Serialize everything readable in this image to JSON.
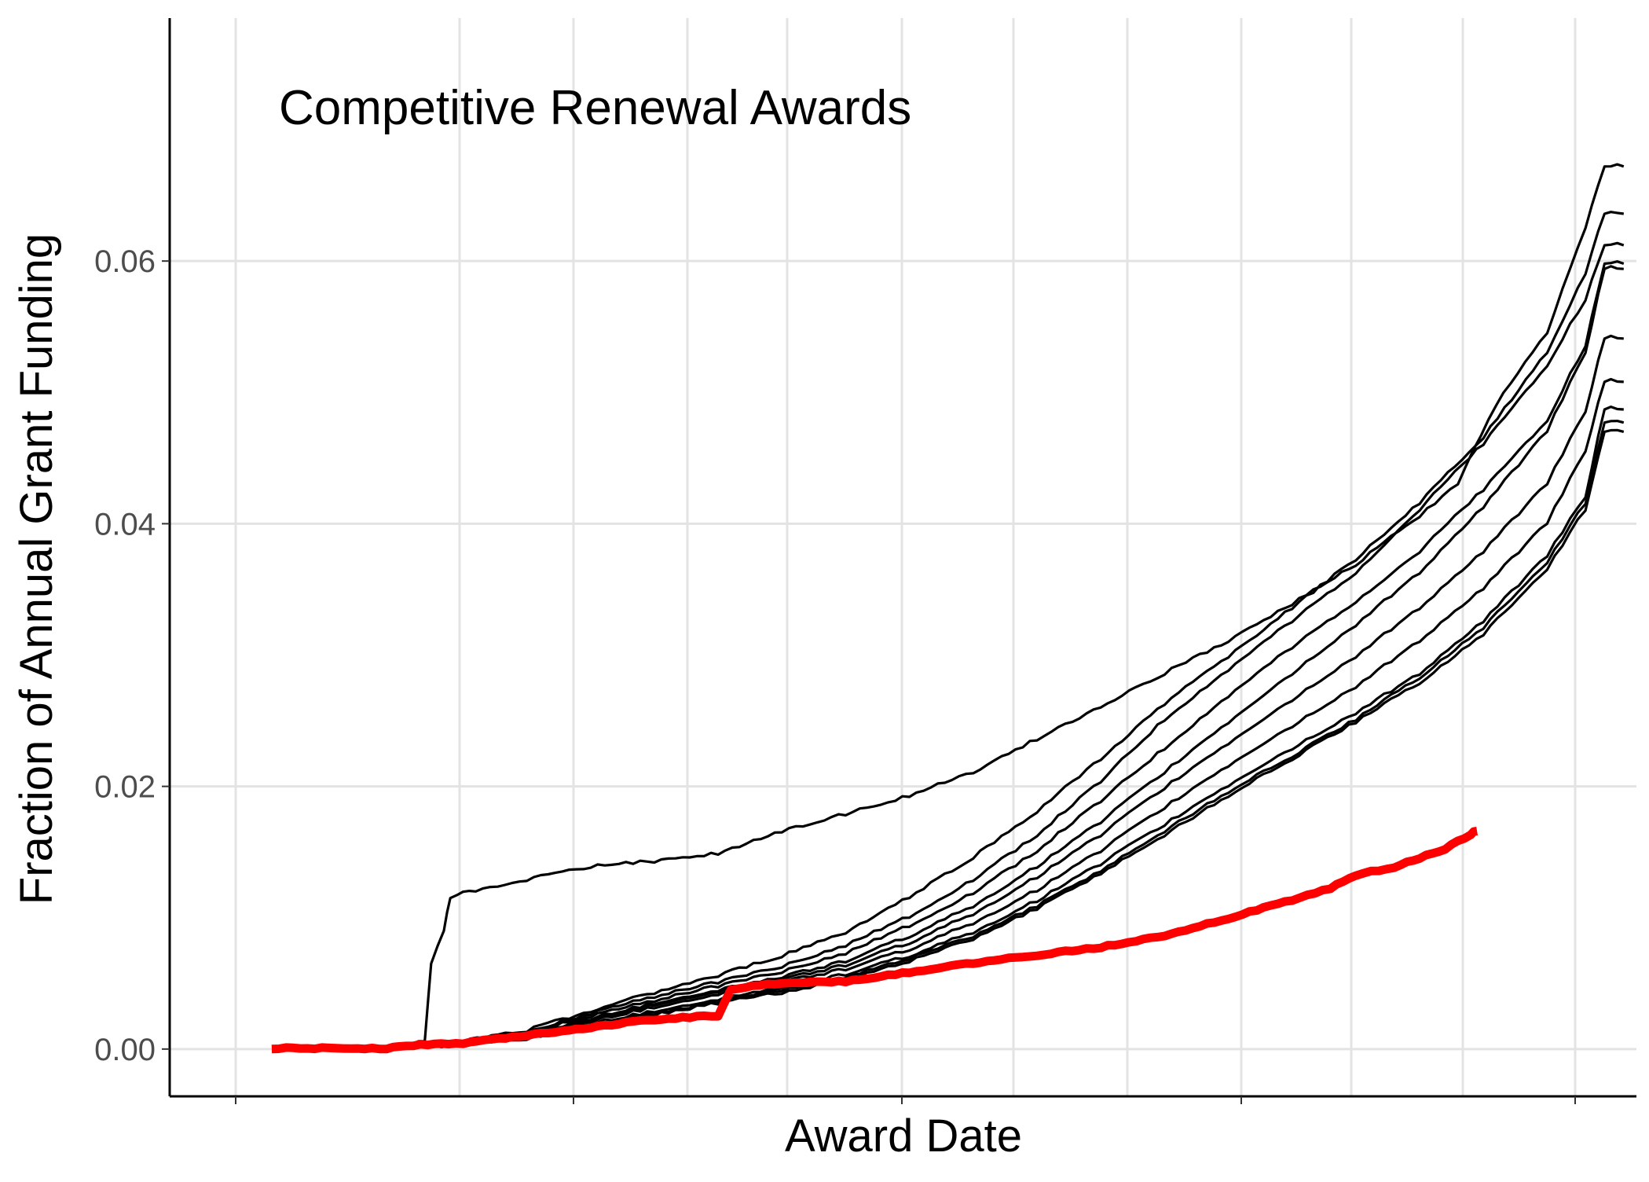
{
  "chart_data": {
    "type": "line",
    "title": "Competitive Renewal Awards",
    "xlabel": "Award Date",
    "ylabel": "Fraction of Annual Grant Funding",
    "x_tick_labels": [],
    "x_unit": "fraction of fiscal year",
    "xlim": [
      -0.08,
      1.07
    ],
    "ylim": [
      -0.0036,
      0.0785
    ],
    "y_ticks": [
      0.0,
      0.02,
      0.04,
      0.06
    ],
    "y_tick_labels": [
      "0.00",
      "0.02",
      "0.04",
      "0.06"
    ],
    "grid": true,
    "legend": "none",
    "colors": {
      "historical": "#000000",
      "current": "#ff0000",
      "grid": "#e3e3e3"
    },
    "series": [
      {
        "group": "historical",
        "color": "#000000",
        "points": [
          [
            0.1,
            0
          ],
          [
            0.11,
            0.0003
          ],
          [
            0.12,
            0.0006
          ],
          [
            0.125,
            0.0065
          ],
          [
            0.135,
            0.009
          ],
          [
            0.14,
            0.0115
          ],
          [
            0.16,
            0.012
          ],
          [
            0.2,
            0.0128
          ],
          [
            0.25,
            0.0138
          ],
          [
            0.3,
            0.0142
          ],
          [
            0.35,
            0.0148
          ],
          [
            0.4,
            0.0165
          ],
          [
            0.45,
            0.0178
          ],
          [
            0.5,
            0.0192
          ],
          [
            0.55,
            0.021
          ],
          [
            0.6,
            0.0235
          ],
          [
            0.65,
            0.026
          ],
          [
            0.7,
            0.0285
          ],
          [
            0.75,
            0.031
          ],
          [
            0.8,
            0.0338
          ],
          [
            0.85,
            0.0368
          ],
          [
            0.9,
            0.0405
          ],
          [
            0.93,
            0.043
          ],
          [
            0.96,
            0.049
          ],
          [
            1.0,
            0.0545
          ],
          [
            1.03,
            0.0625
          ],
          [
            1.045,
            0.0672
          ],
          [
            1.06,
            0.0672
          ]
        ]
      },
      {
        "group": "historical",
        "color": "#000000",
        "points": [
          [
            0.1,
            0
          ],
          [
            0.15,
            0.0005
          ],
          [
            0.2,
            0.0013
          ],
          [
            0.25,
            0.0028
          ],
          [
            0.3,
            0.0042
          ],
          [
            0.35,
            0.0055
          ],
          [
            0.4,
            0.007
          ],
          [
            0.45,
            0.0088
          ],
          [
            0.5,
            0.0115
          ],
          [
            0.55,
            0.0145
          ],
          [
            0.6,
            0.018
          ],
          [
            0.65,
            0.022
          ],
          [
            0.7,
            0.0262
          ],
          [
            0.75,
            0.0298
          ],
          [
            0.8,
            0.0335
          ],
          [
            0.85,
            0.0372
          ],
          [
            0.9,
            0.0415
          ],
          [
            0.95,
            0.0465
          ],
          [
            1.0,
            0.053
          ],
          [
            1.03,
            0.059
          ],
          [
            1.045,
            0.0636
          ],
          [
            1.06,
            0.0636
          ]
        ]
      },
      {
        "group": "historical",
        "color": "#000000",
        "points": [
          [
            0.1,
            0
          ],
          [
            0.15,
            0.0004
          ],
          [
            0.2,
            0.0012
          ],
          [
            0.25,
            0.0026
          ],
          [
            0.3,
            0.0039
          ],
          [
            0.35,
            0.005
          ],
          [
            0.4,
            0.0062
          ],
          [
            0.45,
            0.0078
          ],
          [
            0.5,
            0.01
          ],
          [
            0.55,
            0.0128
          ],
          [
            0.6,
            0.0162
          ],
          [
            0.65,
            0.0203
          ],
          [
            0.7,
            0.025
          ],
          [
            0.75,
            0.0288
          ],
          [
            0.8,
            0.0325
          ],
          [
            0.85,
            0.0362
          ],
          [
            0.9,
            0.041
          ],
          [
            0.95,
            0.046
          ],
          [
            1.0,
            0.052
          ],
          [
            1.03,
            0.057
          ],
          [
            1.045,
            0.0612
          ],
          [
            1.06,
            0.0612
          ]
        ]
      },
      {
        "group": "historical",
        "color": "#000000",
        "points": [
          [
            0.1,
            0
          ],
          [
            0.15,
            0.0004
          ],
          [
            0.2,
            0.0011
          ],
          [
            0.25,
            0.0024
          ],
          [
            0.3,
            0.0036
          ],
          [
            0.35,
            0.0047
          ],
          [
            0.4,
            0.0058
          ],
          [
            0.45,
            0.0072
          ],
          [
            0.5,
            0.0093
          ],
          [
            0.55,
            0.0118
          ],
          [
            0.6,
            0.015
          ],
          [
            0.65,
            0.0188
          ],
          [
            0.7,
            0.0228
          ],
          [
            0.75,
            0.0268
          ],
          [
            0.8,
            0.0305
          ],
          [
            0.85,
            0.034
          ],
          [
            0.9,
            0.0378
          ],
          [
            0.95,
            0.0425
          ],
          [
            1.0,
            0.0478
          ],
          [
            1.03,
            0.0535
          ],
          [
            1.045,
            0.0598
          ],
          [
            1.06,
            0.0598
          ]
        ]
      },
      {
        "group": "historical",
        "color": "#000000",
        "points": [
          [
            0.1,
            0
          ],
          [
            0.15,
            0.0003
          ],
          [
            0.2,
            0.001
          ],
          [
            0.25,
            0.0022
          ],
          [
            0.3,
            0.0034
          ],
          [
            0.35,
            0.0044
          ],
          [
            0.4,
            0.0054
          ],
          [
            0.45,
            0.0066
          ],
          [
            0.5,
            0.0085
          ],
          [
            0.55,
            0.0108
          ],
          [
            0.6,
            0.0138
          ],
          [
            0.65,
            0.0172
          ],
          [
            0.7,
            0.021
          ],
          [
            0.75,
            0.0248
          ],
          [
            0.8,
            0.0285
          ],
          [
            0.85,
            0.0322
          ],
          [
            0.9,
            0.0362
          ],
          [
            0.95,
            0.0412
          ],
          [
            1.0,
            0.047
          ],
          [
            1.03,
            0.053
          ],
          [
            1.045,
            0.0594
          ],
          [
            1.06,
            0.0594
          ]
        ]
      },
      {
        "group": "historical",
        "color": "#000000",
        "points": [
          [
            0.1,
            0
          ],
          [
            0.15,
            0.0003
          ],
          [
            0.2,
            0.001
          ],
          [
            0.25,
            0.0021
          ],
          [
            0.3,
            0.0033
          ],
          [
            0.35,
            0.0043
          ],
          [
            0.4,
            0.0052
          ],
          [
            0.45,
            0.0063
          ],
          [
            0.5,
            0.008
          ],
          [
            0.55,
            0.0102
          ],
          [
            0.6,
            0.013
          ],
          [
            0.65,
            0.0162
          ],
          [
            0.7,
            0.0198
          ],
          [
            0.75,
            0.0232
          ],
          [
            0.8,
            0.0265
          ],
          [
            0.85,
            0.0298
          ],
          [
            0.9,
            0.0335
          ],
          [
            0.95,
            0.0378
          ],
          [
            1.0,
            0.043
          ],
          [
            1.03,
            0.0485
          ],
          [
            1.045,
            0.0541
          ],
          [
            1.06,
            0.0541
          ]
        ]
      },
      {
        "group": "historical",
        "color": "#000000",
        "points": [
          [
            0.1,
            0
          ],
          [
            0.15,
            0.0003
          ],
          [
            0.2,
            0.0009
          ],
          [
            0.25,
            0.002
          ],
          [
            0.3,
            0.0031
          ],
          [
            0.35,
            0.0041
          ],
          [
            0.4,
            0.005
          ],
          [
            0.45,
            0.006
          ],
          [
            0.5,
            0.0075
          ],
          [
            0.55,
            0.0095
          ],
          [
            0.6,
            0.012
          ],
          [
            0.65,
            0.015
          ],
          [
            0.7,
            0.0183
          ],
          [
            0.75,
            0.0215
          ],
          [
            0.8,
            0.0245
          ],
          [
            0.85,
            0.0275
          ],
          [
            0.9,
            0.031
          ],
          [
            0.95,
            0.035
          ],
          [
            1.0,
            0.04
          ],
          [
            1.03,
            0.0455
          ],
          [
            1.045,
            0.0508
          ],
          [
            1.06,
            0.0508
          ]
        ]
      },
      {
        "group": "historical",
        "color": "#000000",
        "points": [
          [
            0.1,
            0
          ],
          [
            0.15,
            0.0003
          ],
          [
            0.2,
            0.0008
          ],
          [
            0.25,
            0.0018
          ],
          [
            0.3,
            0.0028
          ],
          [
            0.35,
            0.0037
          ],
          [
            0.4,
            0.0046
          ],
          [
            0.45,
            0.0056
          ],
          [
            0.5,
            0.007
          ],
          [
            0.55,
            0.0088
          ],
          [
            0.6,
            0.0112
          ],
          [
            0.65,
            0.014
          ],
          [
            0.7,
            0.017
          ],
          [
            0.75,
            0.02
          ],
          [
            0.8,
            0.0228
          ],
          [
            0.85,
            0.0255
          ],
          [
            0.9,
            0.0285
          ],
          [
            0.95,
            0.0325
          ],
          [
            1.0,
            0.0375
          ],
          [
            1.03,
            0.042
          ],
          [
            1.045,
            0.0487
          ],
          [
            1.06,
            0.0487
          ]
        ]
      },
      {
        "group": "historical",
        "color": "#000000",
        "points": [
          [
            0.1,
            0
          ],
          [
            0.15,
            0.0002
          ],
          [
            0.2,
            0.0008
          ],
          [
            0.25,
            0.0017
          ],
          [
            0.3,
            0.0026
          ],
          [
            0.35,
            0.0035
          ],
          [
            0.4,
            0.0044
          ],
          [
            0.45,
            0.0054
          ],
          [
            0.5,
            0.0068
          ],
          [
            0.55,
            0.0085
          ],
          [
            0.6,
            0.0108
          ],
          [
            0.65,
            0.0135
          ],
          [
            0.7,
            0.0165
          ],
          [
            0.75,
            0.0195
          ],
          [
            0.8,
            0.0222
          ],
          [
            0.85,
            0.025
          ],
          [
            0.9,
            0.0282
          ],
          [
            0.95,
            0.032
          ],
          [
            1.0,
            0.037
          ],
          [
            1.03,
            0.0415
          ],
          [
            1.045,
            0.0477
          ],
          [
            1.06,
            0.0477
          ]
        ]
      },
      {
        "group": "historical",
        "color": "#000000",
        "points": [
          [
            0.1,
            0
          ],
          [
            0.15,
            0.0002
          ],
          [
            0.2,
            0.0007
          ],
          [
            0.25,
            0.0016
          ],
          [
            0.3,
            0.0025
          ],
          [
            0.35,
            0.0034
          ],
          [
            0.4,
            0.0042
          ],
          [
            0.45,
            0.0052
          ],
          [
            0.5,
            0.0066
          ],
          [
            0.55,
            0.0083
          ],
          [
            0.6,
            0.0106
          ],
          [
            0.65,
            0.0133
          ],
          [
            0.7,
            0.0162
          ],
          [
            0.75,
            0.0192
          ],
          [
            0.8,
            0.022
          ],
          [
            0.85,
            0.0248
          ],
          [
            0.9,
            0.0278
          ],
          [
            0.95,
            0.0315
          ],
          [
            1.0,
            0.0365
          ],
          [
            1.03,
            0.041
          ],
          [
            1.045,
            0.047
          ],
          [
            1.06,
            0.047
          ]
        ]
      },
      {
        "group": "current",
        "color": "#ff0000",
        "points": [
          [
            0.0,
            0
          ],
          [
            0.09,
            0
          ],
          [
            0.1,
            0.0002
          ],
          [
            0.15,
            0.0004
          ],
          [
            0.2,
            0.001
          ],
          [
            0.25,
            0.0016
          ],
          [
            0.3,
            0.0022
          ],
          [
            0.35,
            0.0025
          ],
          [
            0.36,
            0.0045
          ],
          [
            0.4,
            0.005
          ],
          [
            0.45,
            0.0051
          ],
          [
            0.5,
            0.0058
          ],
          [
            0.55,
            0.0065
          ],
          [
            0.6,
            0.0071
          ],
          [
            0.65,
            0.0077
          ],
          [
            0.7,
            0.0086
          ],
          [
            0.75,
            0.0099
          ],
          [
            0.8,
            0.0113
          ],
          [
            0.83,
            0.0122
          ],
          [
            0.85,
            0.0132
          ],
          [
            0.88,
            0.0138
          ],
          [
            0.9,
            0.0145
          ],
          [
            0.92,
            0.0152
          ],
          [
            0.94,
            0.0163
          ],
          [
            0.945,
            0.0166
          ]
        ]
      }
    ]
  }
}
